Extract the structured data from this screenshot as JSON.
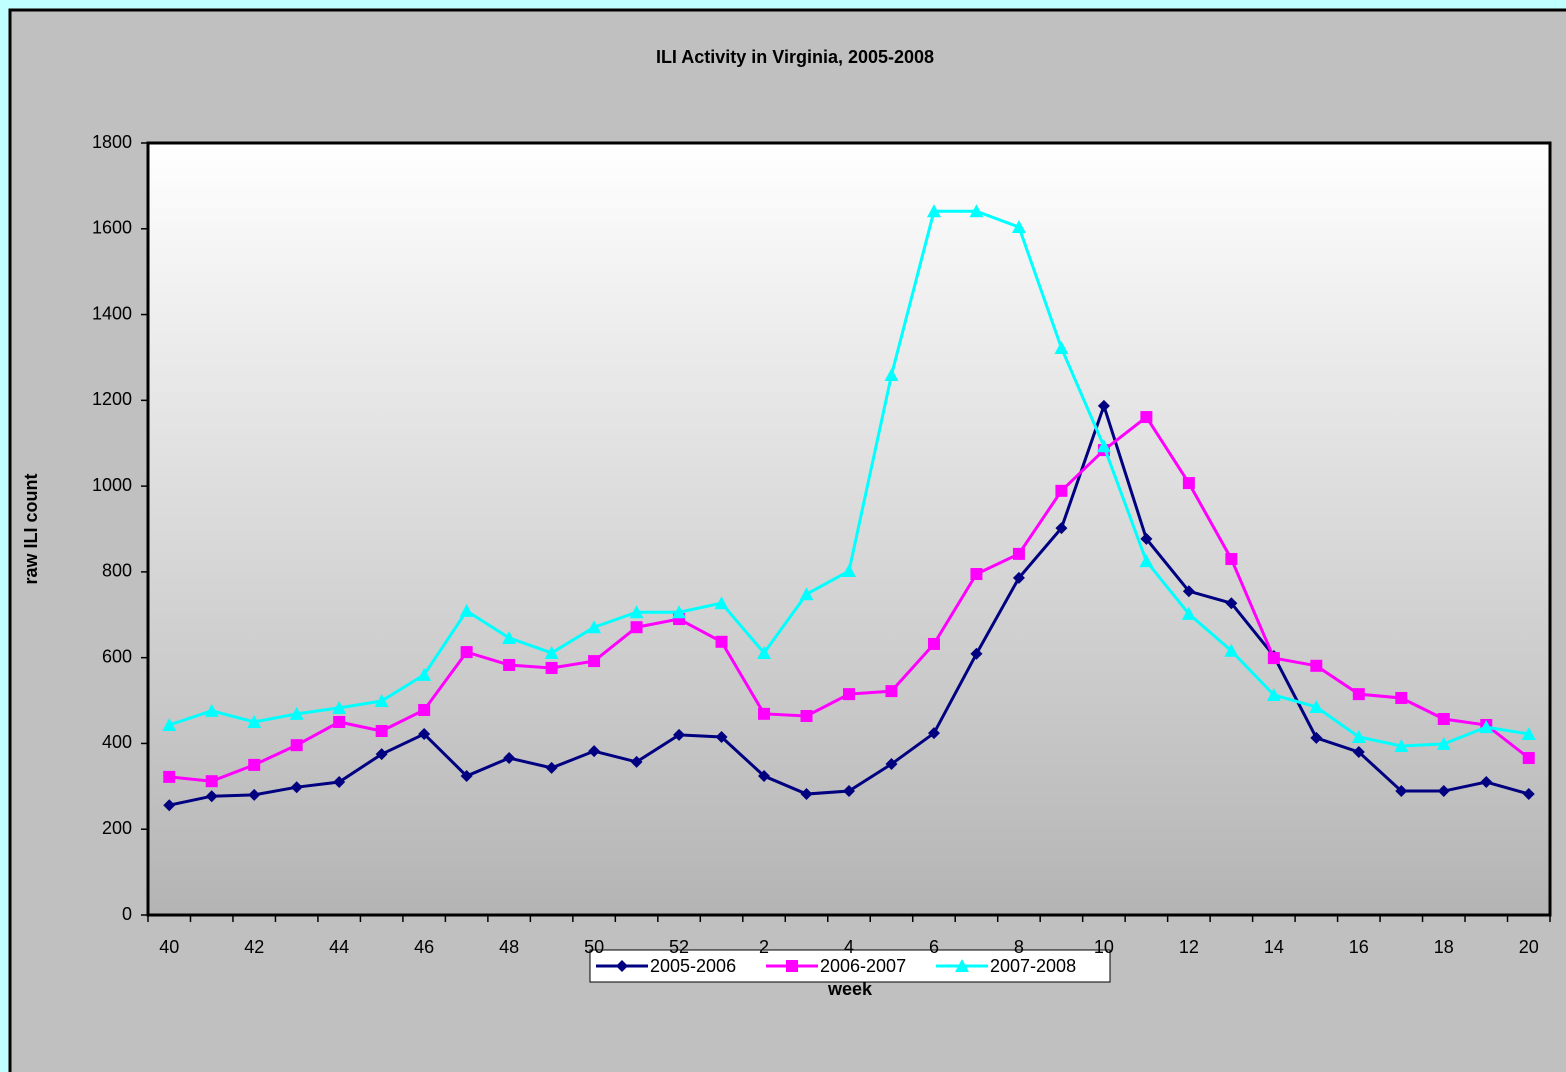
{
  "chart_data": {
    "type": "line",
    "title": "ILI Activity in Virginia, 2005-2008",
    "x_label": "week",
    "y_label": "raw ILI count",
    "categories": [
      "40",
      null,
      "42",
      null,
      "44",
      null,
      "46",
      null,
      "48",
      null,
      "50",
      null,
      "52",
      null,
      "2",
      null,
      "4",
      null,
      "6",
      null,
      "8",
      null,
      "10",
      null,
      "12",
      null,
      "14",
      null,
      "16",
      null,
      "18",
      null,
      "20"
    ],
    "series": [
      {
        "name": "2005-2006",
        "color": "#000080",
        "marker": "diamond",
        "values": [
          256,
          277,
          280,
          298,
          310,
          375,
          422,
          324,
          366,
          343,
          382,
          357,
          420,
          415,
          324,
          282,
          289,
          352,
          424,
          609,
          786,
          902,
          1187,
          877,
          755,
          727,
          604,
          413,
          380,
          289,
          289,
          310,
          282
        ]
      },
      {
        "name": "2006-2007",
        "color": "#ff00ff",
        "marker": "square",
        "values": [
          322,
          312,
          350,
          396,
          450,
          429,
          478,
          613,
          583,
          576,
          592,
          671,
          690,
          637,
          469,
          464,
          515,
          522,
          632,
          795,
          842,
          989,
          1084,
          1161,
          1007,
          830,
          599,
          581,
          515,
          506,
          457,
          443,
          366
        ]
      },
      {
        "name": "2007-2008",
        "color": "#00ffff",
        "marker": "triangle",
        "values": [
          443,
          476,
          450,
          469,
          483,
          499,
          560,
          709,
          646,
          611,
          671,
          706,
          706,
          727,
          611,
          748,
          802,
          1259,
          1641,
          1641,
          1604,
          1322,
          1093,
          825,
          702,
          616,
          513,
          485,
          415,
          394,
          399,
          438,
          422
        ]
      }
    ],
    "ylim": [
      0,
      1800
    ],
    "yticks": [
      0,
      200,
      400,
      600,
      800,
      1000,
      1200,
      1400,
      1600,
      1800
    ],
    "legend": "bottom"
  }
}
